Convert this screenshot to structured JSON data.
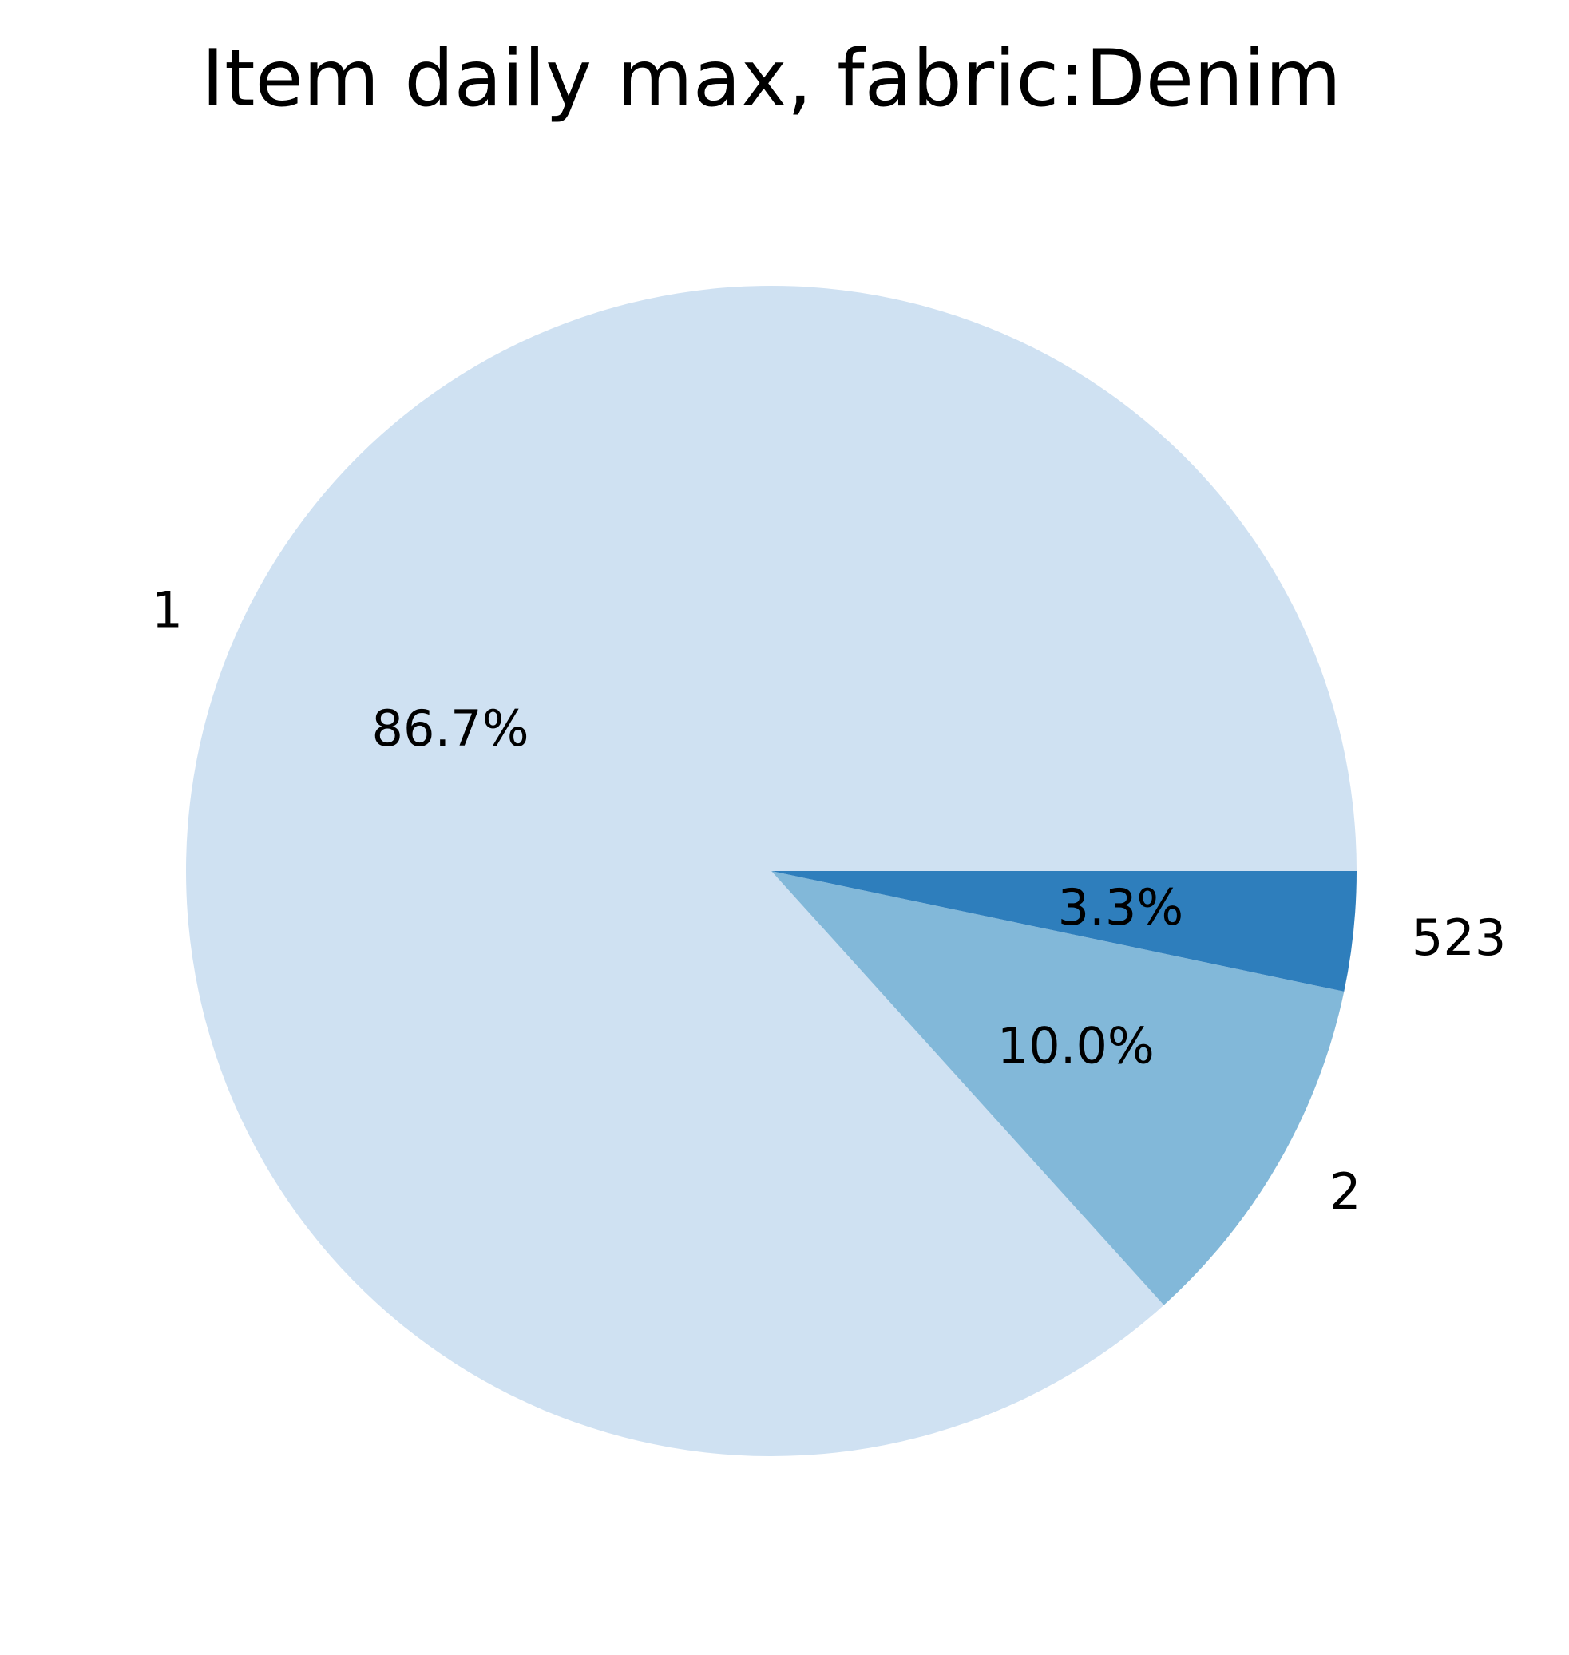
{
  "chart_data": {
    "type": "pie",
    "title": "Item daily max, fabric:Denim",
    "categories": [
      "1",
      "2",
      "523"
    ],
    "values": [
      86.7,
      10.0,
      3.3
    ],
    "percent_labels": [
      "86.7%",
      "10.0%",
      "3.3%"
    ],
    "colors": [
      "#cfe1f2",
      "#82b8d9",
      "#2e7ebc"
    ],
    "start_angle_deg": 0,
    "direction": "counterclockwise",
    "legend": "none"
  }
}
